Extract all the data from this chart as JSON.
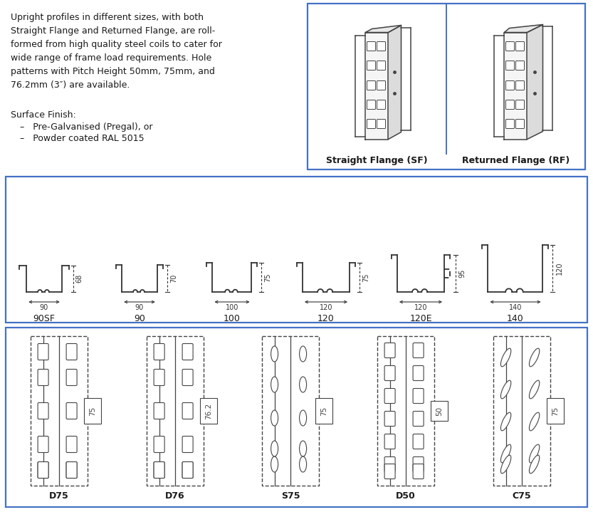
{
  "bg_color": "#ffffff",
  "border_color": "#4472c4",
  "title_text": "Upright profiles in different sizes, with both\nStraight Flange and Returned Flange, are roll-\nformed from high quality steel coils to cater for\nwide range of frame load requirements. Hole\npatterns with Pitch Height 50mm, 75mm, and\n76.2mm (3″) are available.",
  "surface_finish_text": "Surface Finish:",
  "bullet1": "Pre-Galvanised (Pregal), or",
  "bullet2": "Powder coated RAL 5015",
  "sf_label": "Straight Flange (SF)",
  "rf_label": "Returned Flange (RF)",
  "cross_section_labels": [
    "90SF",
    "90",
    "100",
    "120",
    "120E",
    "140"
  ],
  "cross_section_widths": [
    90,
    90,
    100,
    120,
    120,
    140
  ],
  "cross_section_heights": [
    68,
    70,
    75,
    75,
    95,
    120
  ],
  "hole_pattern_labels": [
    "D75",
    "D76",
    "S75",
    "D50",
    "C75"
  ],
  "hole_pattern_pitches": [
    "75",
    "76.2",
    "75",
    "50",
    "75"
  ]
}
